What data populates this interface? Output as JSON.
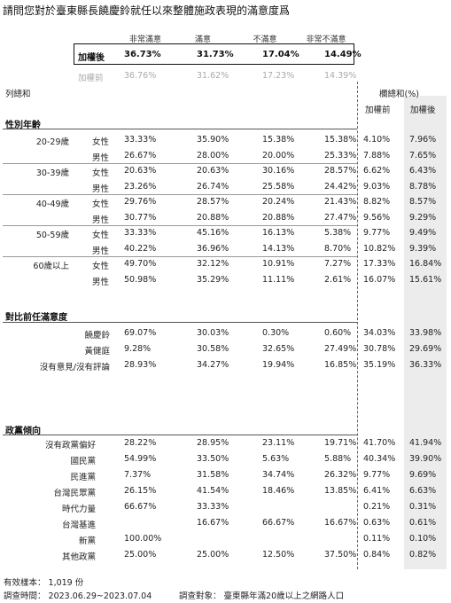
{
  "title": "請問您對於臺東縣長饒慶鈴就任以來整體施政表現的滿意度爲",
  "columns": [
    "非常滿意",
    "滿意",
    "不滿意",
    "非常不滿意"
  ],
  "weighted": {
    "label": "加權後",
    "values": [
      "36.73%",
      "31.73%",
      "17.04%",
      "14.49%"
    ]
  },
  "unweighted": {
    "label": "加權前",
    "values": [
      "36.76%",
      "31.62%",
      "17.23%",
      "14.39%"
    ]
  },
  "col_total_label": "列總和",
  "weight_sum_label": "欄總和(%)",
  "weight_cols": [
    "加權前",
    "加權後"
  ],
  "sections": {
    "gender_age": {
      "title": "性別年齡",
      "groups": [
        {
          "age": "20-29歲",
          "rows": [
            {
              "sex": "女性",
              "v": [
                "33.33%",
                "35.90%",
                "15.38%",
                "15.38%"
              ],
              "pre": "4.10%",
              "post": "7.96%"
            },
            {
              "sex": "男性",
              "v": [
                "26.67%",
                "28.00%",
                "20.00%",
                "25.33%"
              ],
              "pre": "7.88%",
              "post": "7.65%"
            }
          ]
        },
        {
          "age": "30-39歲",
          "rows": [
            {
              "sex": "女性",
              "v": [
                "20.63%",
                "20.63%",
                "30.16%",
                "28.57%"
              ],
              "pre": "6.62%",
              "post": "6.43%"
            },
            {
              "sex": "男性",
              "v": [
                "23.26%",
                "26.74%",
                "25.58%",
                "24.42%"
              ],
              "pre": "9.03%",
              "post": "8.78%"
            }
          ]
        },
        {
          "age": "40-49歲",
          "rows": [
            {
              "sex": "女性",
              "v": [
                "29.76%",
                "28.57%",
                "20.24%",
                "21.43%"
              ],
              "pre": "8.82%",
              "post": "8.57%"
            },
            {
              "sex": "男性",
              "v": [
                "30.77%",
                "20.88%",
                "20.88%",
                "27.47%"
              ],
              "pre": "9.56%",
              "post": "9.29%"
            }
          ]
        },
        {
          "age": "50-59歲",
          "rows": [
            {
              "sex": "女性",
              "v": [
                "33.33%",
                "45.16%",
                "16.13%",
                "5.38%"
              ],
              "pre": "9.77%",
              "post": "9.49%"
            },
            {
              "sex": "男性",
              "v": [
                "40.22%",
                "36.96%",
                "14.13%",
                "8.70%"
              ],
              "pre": "10.82%",
              "post": "9.39%"
            }
          ]
        },
        {
          "age": "60歲以上",
          "rows": [
            {
              "sex": "女性",
              "v": [
                "49.70%",
                "32.12%",
                "10.91%",
                "7.27%"
              ],
              "pre": "17.33%",
              "post": "16.84%"
            },
            {
              "sex": "男性",
              "v": [
                "50.98%",
                "35.29%",
                "11.11%",
                "2.61%"
              ],
              "pre": "16.07%",
              "post": "15.61%"
            }
          ]
        }
      ]
    },
    "prev": {
      "title": "對比前任滿意度",
      "rows": [
        {
          "name": "饒慶鈴",
          "v": [
            "69.07%",
            "30.03%",
            "0.30%",
            "0.60%"
          ],
          "pre": "34.03%",
          "post": "33.98%"
        },
        {
          "name": "黃健庭",
          "v": [
            "9.28%",
            "30.58%",
            "32.65%",
            "27.49%"
          ],
          "pre": "30.78%",
          "post": "29.69%"
        },
        {
          "name": "沒有意見/沒有評論",
          "v": [
            "28.93%",
            "34.27%",
            "19.94%",
            "16.85%"
          ],
          "pre": "35.19%",
          "post": "36.33%"
        }
      ]
    },
    "party": {
      "title": "政黨傾向",
      "rows": [
        {
          "name": "沒有政黨偏好",
          "v": [
            "28.22%",
            "28.95%",
            "23.11%",
            "19.71%"
          ],
          "pre": "41.70%",
          "post": "41.94%"
        },
        {
          "name": "國民黨",
          "v": [
            "54.99%",
            "33.50%",
            "5.63%",
            "5.88%"
          ],
          "pre": "40.34%",
          "post": "39.90%"
        },
        {
          "name": "民進黨",
          "v": [
            "7.37%",
            "31.58%",
            "34.74%",
            "26.32%"
          ],
          "pre": "9.77%",
          "post": "9.69%"
        },
        {
          "name": "台灣民眾黨",
          "v": [
            "26.15%",
            "41.54%",
            "18.46%",
            "13.85%"
          ],
          "pre": "6.41%",
          "post": "6.63%"
        },
        {
          "name": "時代力量",
          "v": [
            "66.67%",
            "33.33%",
            "",
            ""
          ],
          "pre": "0.21%",
          "post": "0.31%"
        },
        {
          "name": "台灣基進",
          "v": [
            "",
            "16.67%",
            "66.67%",
            "16.67%"
          ],
          "pre": "0.63%",
          "post": "0.61%"
        },
        {
          "name": "新黨",
          "v": [
            "100.00%",
            "",
            "",
            ""
          ],
          "pre": "0.11%",
          "post": "0.10%"
        },
        {
          "name": "其他政黨",
          "v": [
            "25.00%",
            "25.00%",
            "12.50%",
            "37.50%"
          ],
          "pre": "0.84%",
          "post": "0.82%"
        }
      ]
    }
  },
  "footer": {
    "sample": "有效樣本： 1,019 份",
    "period": "調查時間： 2023.06.29~2023.07.04",
    "target": "調查對象： 臺東縣年滿20歲以上之網路人口"
  }
}
